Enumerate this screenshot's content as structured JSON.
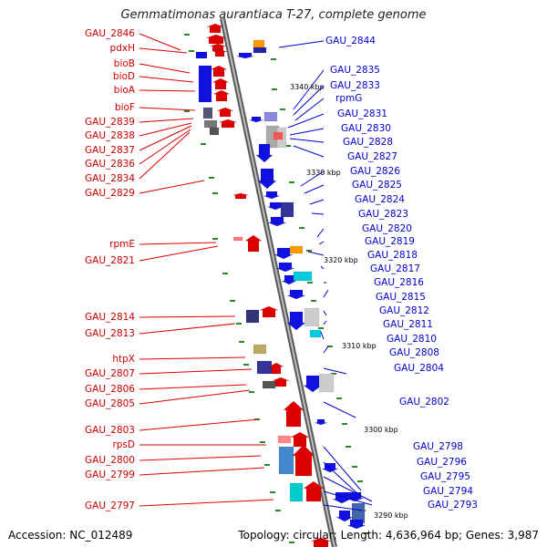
{
  "title": "Gemmatimonas aurantiaca T-27, complete genome",
  "footer": {
    "accession": "Accession: NC_012489",
    "stats": "Topology: circular; Length: 4,636,964 bp; Genes: 3,987"
  },
  "colors": {
    "forward": "#dd0000",
    "reverse": "#1010e0",
    "backbone": "#8a8a8a",
    "tick": "#2a8a2a"
  },
  "position_markers": [
    "3340 kbp",
    "3330 kbp",
    "3320 kbp",
    "3310 kbp",
    "3300 kbp",
    "3290 kbp"
  ],
  "left_labels": [
    "GAU_2846",
    "pdxH",
    "bioB",
    "bioD",
    "bioA",
    "bioF",
    "GAU_2839",
    "GAU_2838",
    "GAU_2837",
    "GAU_2836",
    "GAU_2834",
    "GAU_2829",
    "rpmE",
    "GAU_2821",
    "GAU_2814",
    "GAU_2813",
    "htpX",
    "GAU_2807",
    "GAU_2806",
    "GAU_2805",
    "GAU_2803",
    "rpsD",
    "GAU_2800",
    "GAU_2799",
    "GAU_2797"
  ],
  "right_labels": [
    "GAU_2844",
    "GAU_2835",
    "GAU_2833",
    "rpmG",
    "GAU_2831",
    "GAU_2830",
    "GAU_2828",
    "GAU_2827",
    "GAU_2826",
    "GAU_2825",
    "GAU_2824",
    "GAU_2823",
    "GAU_2820",
    "GAU_2819",
    "GAU_2818",
    "GAU_2817",
    "GAU_2816",
    "GAU_2815",
    "GAU_2812",
    "GAU_2811",
    "GAU_2810",
    "GAU_2808",
    "GAU_2804",
    "GAU_2802",
    "GAU_2798",
    "GAU_2796",
    "GAU_2795",
    "GAU_2794",
    "GAU_2793"
  ]
}
